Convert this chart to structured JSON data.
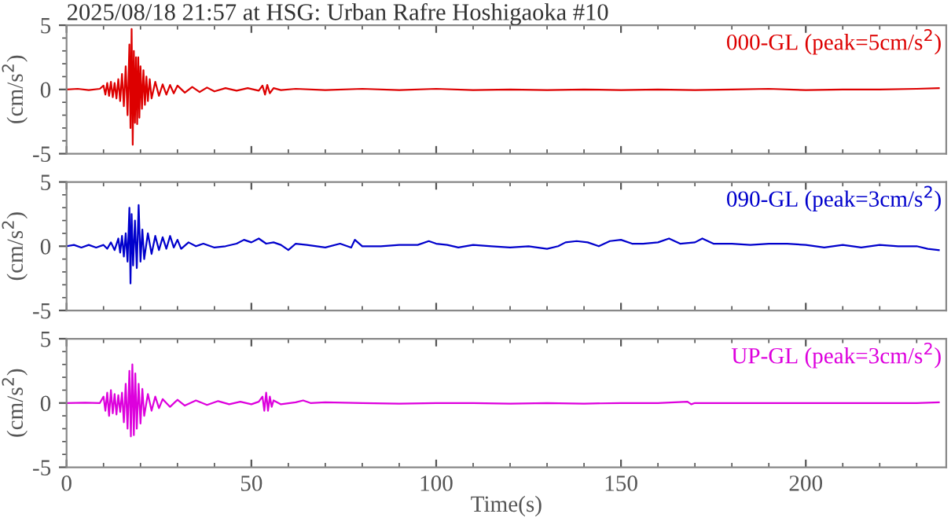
{
  "chart_data": [
    {
      "type": "line",
      "title": "2025/08/18 21:57 at HSG: Urban Rafre Hoshigaoka #10",
      "ylabel": "(cm/s$^{2}$)",
      "xlim": [
        0,
        238
      ],
      "xticks": [
        0,
        50,
        100,
        150,
        200
      ],
      "ylim": [
        -5,
        5
      ],
      "yticks": [
        5,
        0,
        -5
      ],
      "tick_labels": "y",
      "grid": false,
      "series": [
        {
          "name": "000-GL (peak=5cm/s$^{2}$)",
          "color": "#dd0000",
          "x": [
            0,
            3,
            6,
            9,
            10,
            10.5,
            11,
            11.5,
            12,
            12.5,
            13,
            13.5,
            14,
            14.5,
            15,
            15.5,
            16,
            16.5,
            17,
            17.3,
            17.6,
            17.9,
            18.2,
            18.5,
            18.8,
            19.1,
            19.4,
            19.7,
            20,
            20.4,
            20.8,
            21.2,
            21.6,
            22,
            22.5,
            23,
            24,
            25,
            26,
            27,
            28,
            29,
            30,
            32,
            34,
            36,
            38,
            40,
            43,
            46,
            49,
            52,
            53,
            53.7,
            54.3,
            55,
            56,
            58,
            62,
            70,
            80,
            90,
            100,
            110,
            120,
            130,
            140,
            150,
            160,
            170,
            180,
            190,
            200,
            210,
            220,
            230,
            236
          ],
          "values": [
            0,
            0.05,
            -0.05,
            0.05,
            0.3,
            -0.4,
            0.5,
            -0.5,
            0.6,
            -0.6,
            0.5,
            -0.7,
            0.8,
            -0.9,
            1.2,
            -1.3,
            1.8,
            -2.0,
            3.5,
            -3.0,
            4.7,
            -4.3,
            3.0,
            -2.6,
            2.5,
            -2.7,
            2.5,
            -2.2,
            1.8,
            -1.5,
            1.5,
            -1.2,
            1.0,
            -0.9,
            0.8,
            -0.7,
            0.6,
            -0.5,
            0.4,
            -0.4,
            0.35,
            -0.3,
            0.3,
            -0.25,
            0.2,
            -0.2,
            0.15,
            -0.15,
            0.1,
            -0.1,
            0.1,
            -0.1,
            0.3,
            -0.4,
            0.35,
            -0.3,
            0.1,
            -0.05,
            0.05,
            -0.05,
            0.05,
            -0.05,
            0.05,
            -0.05,
            0,
            -0.05,
            0,
            -0.05,
            0,
            -0.05,
            0,
            0.05,
            -0.05,
            0,
            0,
            0.05,
            0.1
          ]
        }
      ]
    },
    {
      "type": "line",
      "ylabel": "(cm/s$^{2}$)",
      "xlim": [
        0,
        238
      ],
      "xticks": [
        0,
        50,
        100,
        150,
        200
      ],
      "ylim": [
        -5,
        5
      ],
      "yticks": [
        5,
        0,
        -5
      ],
      "tick_labels": "y",
      "grid": false,
      "series": [
        {
          "name": "090-GL (peak=3cm/s$^{2}$)",
          "color": "#0000cc",
          "x": [
            0,
            2,
            4,
            6,
            8,
            10,
            11,
            12,
            13,
            14,
            14.5,
            15,
            15.5,
            16,
            16.5,
            17,
            17.3,
            17.6,
            18,
            18.5,
            19,
            19.5,
            20,
            20.5,
            21,
            22,
            23,
            24,
            25,
            26,
            27,
            28,
            29,
            30,
            31,
            33,
            35,
            37,
            40,
            43,
            46,
            48,
            50,
            52,
            54,
            56,
            58,
            60,
            62,
            65,
            70,
            74,
            77,
            78,
            80,
            85,
            90,
            95,
            98,
            100,
            103,
            106,
            110,
            115,
            120,
            125,
            130,
            133,
            135,
            138,
            141,
            144,
            147,
            150,
            153,
            156,
            160,
            163,
            166,
            170,
            172,
            175,
            180,
            185,
            190,
            195,
            200,
            205,
            210,
            215,
            220,
            225,
            230,
            233,
            236
          ],
          "values": [
            0,
            0.1,
            -0.1,
            0.1,
            -0.1,
            0.1,
            -0.2,
            0.3,
            -0.3,
            0.6,
            -0.5,
            0.8,
            -0.8,
            1.0,
            -1.2,
            3.0,
            -2.9,
            2.5,
            -1.5,
            2.0,
            -1.7,
            3.2,
            -1.2,
            1.3,
            -1.0,
            1.0,
            -0.6,
            0.8,
            -0.3,
            0.7,
            -0.2,
            0.8,
            -0.1,
            0.5,
            -0.2,
            0.3,
            0.0,
            0.2,
            -0.1,
            0.0,
            0.2,
            0.5,
            0.3,
            0.6,
            0.2,
            0.3,
            0.1,
            -0.3,
            0.2,
            0.1,
            -0.1,
            0.2,
            -0.1,
            0.5,
            0.0,
            0.0,
            0.1,
            0.1,
            0.4,
            0.2,
            0.1,
            -0.1,
            0.1,
            0.0,
            -0.1,
            0.0,
            -0.2,
            0.0,
            0.3,
            0.4,
            0.3,
            0.0,
            0.4,
            0.5,
            0.2,
            0.2,
            0.3,
            0.6,
            0.2,
            0.3,
            0.6,
            0.2,
            0.2,
            0.1,
            0.2,
            0.2,
            0.1,
            -0.1,
            0.1,
            -0.1,
            0.1,
            0.0,
            0.0,
            -0.2,
            -0.3
          ]
        }
      ]
    },
    {
      "type": "line",
      "ylabel": "(cm/s$^{2}$)",
      "xlabel": "Time(s)",
      "xlim": [
        0,
        238
      ],
      "xticks": [
        0,
        50,
        100,
        150,
        200
      ],
      "ylim": [
        -5,
        5
      ],
      "yticks": [
        5,
        0,
        -5
      ],
      "grid": false,
      "series": [
        {
          "name": "UP-GL (peak=3cm/s$^{2}$)",
          "color": "#dd00dd",
          "x": [
            0,
            5,
            9,
            10,
            10.5,
            11,
            11.5,
            12,
            12.5,
            13,
            13.5,
            14,
            14.5,
            15,
            15.5,
            16,
            16.5,
            17,
            17.4,
            17.8,
            18.2,
            18.6,
            19,
            19.5,
            20,
            20.5,
            21,
            22,
            23,
            24,
            25,
            26,
            28,
            30,
            32,
            35,
            38,
            41,
            44,
            47,
            50,
            52,
            53,
            53.5,
            54,
            54.5,
            55,
            55.5,
            56,
            58,
            62,
            64,
            66,
            70,
            80,
            90,
            100,
            110,
            120,
            130,
            140,
            150,
            160,
            168,
            169,
            170,
            180,
            190,
            200,
            210,
            220,
            230,
            236
          ],
          "values": [
            0,
            0.02,
            0,
            0.5,
            -0.6,
            0.8,
            -1.0,
            1.0,
            -0.8,
            0.7,
            -0.9,
            0.6,
            -0.7,
            0.8,
            -1.5,
            1.5,
            -2.0,
            2.5,
            -2.6,
            3.0,
            -2.5,
            2.3,
            -2.0,
            1.5,
            -1.6,
            1.1,
            -1.0,
            0.7,
            -0.6,
            0.5,
            -0.4,
            0.3,
            -0.3,
            0.25,
            -0.2,
            0.2,
            -0.15,
            0.15,
            -0.1,
            0.1,
            -0.1,
            0.1,
            0.5,
            -0.6,
            0.8,
            -0.6,
            0.5,
            -0.3,
            0.2,
            -0.1,
            0.05,
            0.2,
            0.0,
            0.05,
            0,
            -0.05,
            0,
            0,
            -0.05,
            0,
            -0.05,
            0,
            0,
            0.1,
            -0.1,
            0,
            0,
            0,
            0,
            0,
            0,
            0,
            0.05
          ]
        }
      ]
    }
  ]
}
